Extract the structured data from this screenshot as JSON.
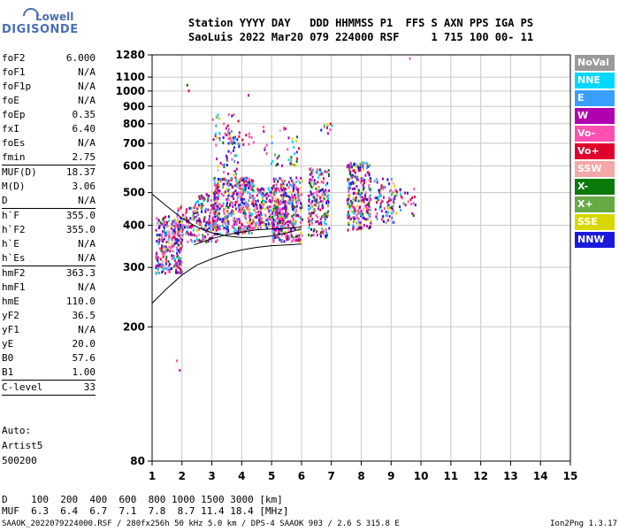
{
  "logo": {
    "line1": "Lowell",
    "line2": "DIGISONDE"
  },
  "header": {
    "line1": "Station YYYY DAY   DDD HHMMSS P1  FFS S AXN PPS IGA PS",
    "line2": "SaoLuis 2022 Mar20 079 224000 RSF     1 715 100 00- 11"
  },
  "params": [
    {
      "label": "foF2",
      "value": "6.000"
    },
    {
      "label": "foF1",
      "value": "N/A"
    },
    {
      "label": "foF1p",
      "value": "N/A"
    },
    {
      "label": "foE",
      "value": "N/A"
    },
    {
      "label": "foEp",
      "value": "0.35"
    },
    {
      "label": "fxI",
      "value": "6.40"
    },
    {
      "label": "foEs",
      "value": "N/A"
    },
    {
      "label": "fmin",
      "value": "2.75",
      "sep_after": true
    },
    {
      "label": "MUF(D)",
      "value": "18.37"
    },
    {
      "label": "M(D)",
      "value": "3.06"
    },
    {
      "label": "D",
      "value": "N/A",
      "sep_after": true
    },
    {
      "label": "h`F",
      "value": "355.0"
    },
    {
      "label": "h`F2",
      "value": "355.0"
    },
    {
      "label": "h`E",
      "value": "N/A"
    },
    {
      "label": "h`Es",
      "value": "N/A",
      "sep_after": true
    },
    {
      "label": "hmF2",
      "value": "363.3"
    },
    {
      "label": "hmF1",
      "value": "N/A"
    },
    {
      "label": "hmE",
      "value": "110.0"
    },
    {
      "label": "yF2",
      "value": "36.5"
    },
    {
      "label": "yF1",
      "value": "N/A"
    },
    {
      "label": "yE",
      "value": "20.0"
    },
    {
      "label": "B0",
      "value": "57.6"
    },
    {
      "label": "B1",
      "value": "1.00",
      "sep_after": true
    },
    {
      "label": "C-level",
      "value": "33",
      "sep_after": true
    }
  ],
  "auto": {
    "line1": "Auto:",
    "line2": "Artist5",
    "line3": "500200"
  },
  "legend": [
    {
      "label": "NoVal",
      "color": "#9a9a9a"
    },
    {
      "label": "NNE",
      "color": "#00d8ff"
    },
    {
      "label": "E",
      "color": "#3aa0ff"
    },
    {
      "label": "W",
      "color": "#b000b0"
    },
    {
      "label": "Vo-",
      "color": "#ff4fb0"
    },
    {
      "label": "Vo+",
      "color": "#e0002c"
    },
    {
      "label": "SSW",
      "color": "#f5a8a8"
    },
    {
      "label": "X-",
      "color": "#0a7a0a"
    },
    {
      "label": "X+",
      "color": "#66aa44"
    },
    {
      "label": "SSE",
      "color": "#d8d800"
    },
    {
      "label": "NNW",
      "color": "#1a1adc"
    }
  ],
  "dmuf": {
    "line1": "D    100  200  400  600  800 1000 1500 3000 [km]",
    "line2": "MUF  6.3  6.4  6.7  7.1  7.8  8.7 11.4 18.4 [MHz]"
  },
  "footer": {
    "left": "SAAOK_2022079224000.RSF / 280fx256h 50 kHz 5.0 km / DPS-4 SAAOK 903 / 2.6 S 315.8 E",
    "right": "Ion2Png 1.3.17"
  },
  "chart_data": {
    "type": "scatter",
    "title": "",
    "xlabel": "",
    "ylabel": "",
    "xlim": [
      1,
      15
    ],
    "ylim": [
      80,
      1280
    ],
    "y_scale": "log",
    "xticks": [
      1,
      2,
      3,
      4,
      5,
      6,
      7,
      8,
      9,
      10,
      11,
      12,
      13,
      14,
      15
    ],
    "yticks": [
      80,
      200,
      300,
      400,
      500,
      600,
      700,
      800,
      900,
      1000,
      1100,
      1280
    ],
    "grid": true,
    "legend_position": "right",
    "clusters": [
      {
        "x_range": [
          1.1,
          2.0
        ],
        "y_range": [
          290,
          430
        ],
        "density": 1.0
      },
      {
        "x_range": [
          1.8,
          2.4
        ],
        "y_range": [
          360,
          460
        ],
        "density": 0.6
      },
      {
        "x_range": [
          2.4,
          3.2
        ],
        "y_range": [
          360,
          500
        ],
        "density": 0.8
      },
      {
        "x_range": [
          3.0,
          4.4
        ],
        "y_range": [
          380,
          560
        ],
        "density": 1.0
      },
      {
        "x_range": [
          3.0,
          4.4
        ],
        "y_range": [
          700,
          760
        ],
        "density": 0.4
      },
      {
        "x_range": [
          3.1,
          3.9
        ],
        "y_range": [
          560,
          880
        ],
        "density": 0.2
      },
      {
        "x_range": [
          4.4,
          5.5
        ],
        "y_range": [
          390,
          520
        ],
        "density": 0.9
      },
      {
        "x_range": [
          5.0,
          6.0
        ],
        "y_range": [
          360,
          560
        ],
        "density": 0.8
      },
      {
        "x_range": [
          4.7,
          5.9
        ],
        "y_range": [
          600,
          800
        ],
        "density": 0.15
      },
      {
        "x_range": [
          6.2,
          6.9
        ],
        "y_range": [
          370,
          600
        ],
        "density": 0.7
      },
      {
        "x_range": [
          6.6,
          7.0
        ],
        "y_range": [
          740,
          810
        ],
        "density": 0.4
      },
      {
        "x_range": [
          7.5,
          8.3
        ],
        "y_range": [
          390,
          620
        ],
        "density": 0.9
      },
      {
        "x_range": [
          8.4,
          9.1
        ],
        "y_range": [
          410,
          560
        ],
        "density": 0.5
      },
      {
        "x_range": [
          9.1,
          9.8
        ],
        "y_range": [
          430,
          520
        ],
        "density": 0.25
      }
    ],
    "isolated_points": [
      {
        "x": 1.8,
        "y": 160
      },
      {
        "x": 1.9,
        "y": 150
      },
      {
        "x": 2.2,
        "y": 1010
      },
      {
        "x": 2.15,
        "y": 1050
      },
      {
        "x": 3.0,
        "y": 830
      },
      {
        "x": 9.6,
        "y": 1260
      },
      {
        "x": 4.2,
        "y": 980
      }
    ],
    "trace_curves": [
      {
        "name": "",
        "x": [
          1.0,
          1.5,
          2.0,
          2.5,
          3.0,
          3.5,
          4.0,
          4.5,
          5.0,
          5.5,
          6.0
        ],
        "y": [
          235,
          260,
          285,
          305,
          318,
          330,
          338,
          344,
          348,
          350,
          352
        ]
      },
      {
        "name": "",
        "x": [
          1.0,
          1.5,
          2.0,
          2.5,
          3.0,
          3.5,
          4.0,
          4.5,
          5.0,
          5.5,
          6.0
        ],
        "y": [
          495,
          455,
          420,
          395,
          380,
          372,
          368,
          368,
          372,
          380,
          390
        ]
      },
      {
        "name": "",
        "x": [
          2.4,
          3.0,
          3.5,
          4.0,
          4.5,
          5.0,
          5.5,
          6.0
        ],
        "y": [
          350,
          365,
          375,
          382,
          388,
          390,
          392,
          395
        ]
      }
    ]
  }
}
